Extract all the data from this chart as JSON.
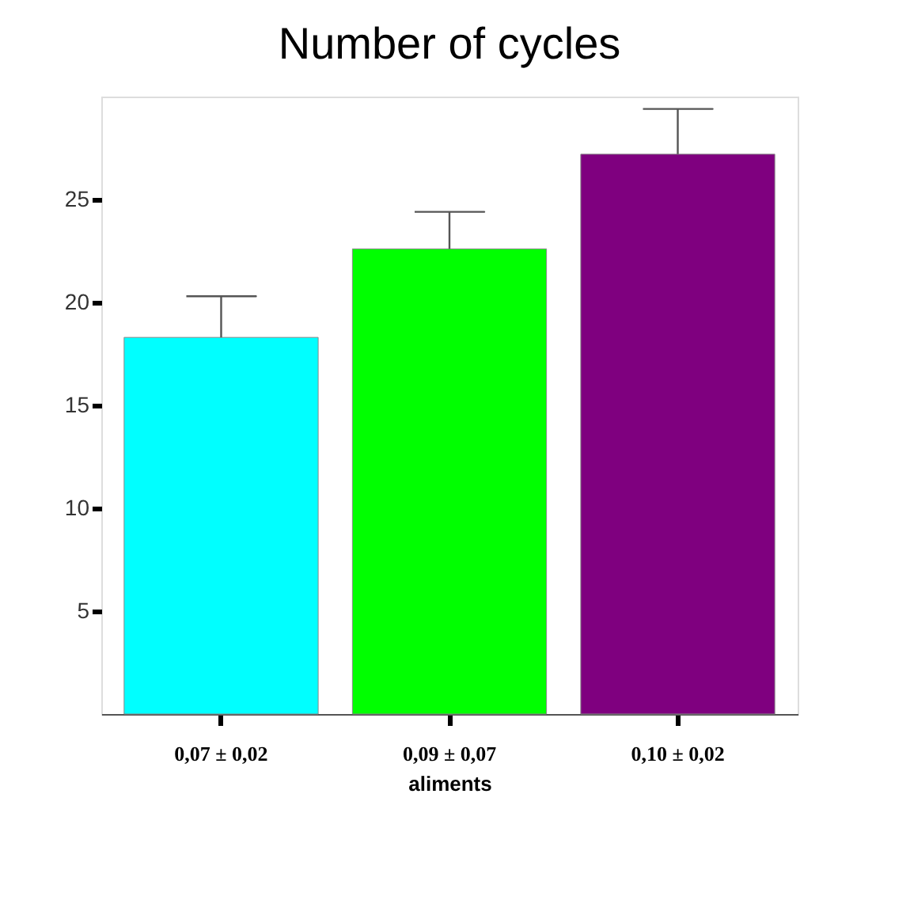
{
  "chart_data": {
    "type": "bar",
    "title": "Number of cycles",
    "xlabel": "aliments",
    "categories": [
      "0,07 ± 0,02",
      "0,09 ± 0,07",
      "0,10 ± 0,02"
    ],
    "values": [
      18.3,
      22.6,
      27.2
    ],
    "colors": [
      "#00ffff",
      "#00ff00",
      "#7f007f"
    ],
    "errors": [
      [
        18.3,
        20.3
      ],
      [
        22.6,
        24.4
      ],
      [
        27.2,
        29.4
      ]
    ],
    "ylim": [
      0,
      30
    ],
    "yticks": [
      5,
      10,
      15,
      20,
      25
    ],
    "grid": false
  }
}
